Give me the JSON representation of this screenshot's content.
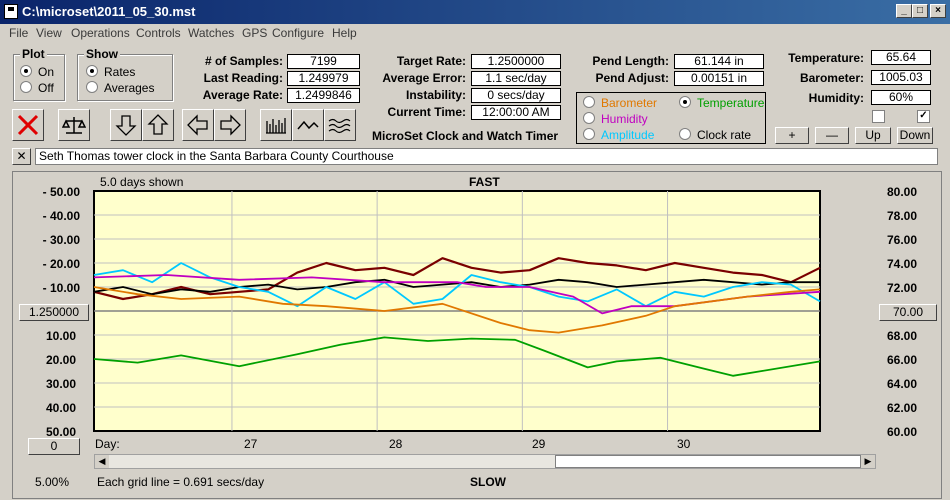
{
  "window": {
    "title": "C:\\microset\\2011_05_30.mst"
  },
  "menu": [
    "File",
    "View",
    "Operations",
    "Controls",
    "Watches",
    "GPS",
    "Configure",
    "Help"
  ],
  "plot_group": {
    "title": "Plot",
    "on": "On",
    "off": "Off",
    "selected": "On"
  },
  "show_group": {
    "title": "Show",
    "rates": "Rates",
    "averages": "Averages",
    "selected": "Rates"
  },
  "stats": {
    "samples_label": "# of Samples:",
    "samples": "7199",
    "last_label": "Last Reading:",
    "last": "1.249979",
    "avg_label": "Average Rate:",
    "avg": "1.2499846",
    "target_label": "Target Rate:",
    "target": "1.2500000",
    "avgerr_label": "Average Error:",
    "avgerr": "1.1 sec/day",
    "instab_label": "Instability:",
    "instab": "0 secs/day",
    "time_label": "Current Time:",
    "time": "12:00:00 AM",
    "app_name": "MicroSet Clock and Watch Timer",
    "pendlen_label": "Pend Length:",
    "pendlen": "61.144 in",
    "pendadj_label": "Pend Adjust:",
    "pendadj": "0.00151 in",
    "temp_label": "Temperature:",
    "temp": "65.64",
    "baro_label": "Barometer:",
    "baro": "1005.03",
    "hum_label": "Humidity:",
    "hum": "60%"
  },
  "sensors": {
    "barometer": "Barometer",
    "temperature": "Temperature",
    "humidity": "Humidity",
    "amplitude": "Amplitude",
    "clockrate": "Clock rate",
    "selected": "Temperature",
    "colors": {
      "barometer": "#e07800",
      "temperature": "#00a000",
      "humidity": "#c000c0",
      "amplitude": "#00c8ff",
      "clockrate": "#000000"
    }
  },
  "adjust_buttons": {
    "plus": "+",
    "minus": "—",
    "up": "Up",
    "down": "Down"
  },
  "description": "Seth Thomas tower clock in the Santa Barbara County Courthouse",
  "chart_labels": {
    "days_shown": "5.0 days shown",
    "fast": "FAST",
    "slow": "SLOW",
    "center_rate": "1.250000",
    "right_center": "70.00",
    "offset": "0",
    "zoom": "5.00%",
    "grid_note": "Each grid line = 0.691 secs/day"
  },
  "chart_data": {
    "type": "line",
    "left_ticks": [
      "- 50.00",
      "- 40.00",
      "- 30.00",
      "- 20.00",
      "- 10.00",
      "10.00",
      "20.00",
      "30.00",
      "40.00",
      "50.00"
    ],
    "right_ticks": [
      "80.00",
      "78.00",
      "76.00",
      "74.00",
      "72.00",
      "68.00",
      "66.00",
      "64.00",
      "62.00",
      "60.00"
    ],
    "x_label": "Day:",
    "x_ticks": [
      "27",
      "28",
      "29",
      "30"
    ],
    "x_range": [
      0,
      5
    ],
    "y_left_range": [
      -50,
      50
    ],
    "y_right_range": [
      60,
      80
    ],
    "series": [
      {
        "color": "#7a0000",
        "x": [
          0,
          0.2,
          0.4,
          0.6,
          0.8,
          1.0,
          1.2,
          1.4,
          1.6,
          1.8,
          2.0,
          2.2,
          2.4,
          2.6,
          2.8,
          3.0,
          3.2,
          3.4,
          3.6,
          3.8,
          4.0,
          4.2,
          4.4,
          4.6,
          4.8,
          5.0
        ],
        "y": [
          -8,
          -5,
          -7,
          -10,
          -7,
          -8,
          -9,
          -16,
          -20,
          -17,
          -18,
          -15,
          -22,
          -18,
          -16,
          -17,
          -22,
          -20,
          -19,
          -17,
          -20,
          -18,
          -16,
          -15,
          -12,
          -18
        ]
      },
      {
        "color": "#000000",
        "x": [
          0,
          0.2,
          0.4,
          0.6,
          0.8,
          1.0,
          1.2,
          1.4,
          1.6,
          1.8,
          2.0,
          2.2,
          2.4,
          2.6,
          2.8,
          3.0,
          3.2,
          3.4,
          3.6,
          3.8,
          4.0,
          4.2,
          4.4,
          4.6,
          4.8,
          5.0
        ],
        "y": [
          -8,
          -10,
          -7,
          -9,
          -8,
          -10,
          -11,
          -9,
          -10,
          -12,
          -13,
          -10,
          -11,
          -12,
          -10,
          -11,
          -13,
          -12,
          -10,
          -11,
          -12,
          -13,
          -12,
          -11,
          -12,
          -12
        ]
      },
      {
        "color": "#00c8ff",
        "x": [
          0,
          0.2,
          0.4,
          0.6,
          0.8,
          1.0,
          1.2,
          1.4,
          1.6,
          1.8,
          2.0,
          2.2,
          2.4,
          2.6,
          2.8,
          3.0,
          3.2,
          3.4,
          3.6,
          3.8,
          4.0,
          4.2,
          4.4,
          4.6,
          4.8,
          5.0
        ],
        "y": [
          -15,
          -17,
          -12,
          -20,
          -14,
          -10,
          -8,
          -2,
          -10,
          -5,
          -12,
          -3,
          -5,
          -15,
          -12,
          -10,
          -6,
          -4,
          -9,
          -2,
          -8,
          -6,
          -10,
          -12,
          -11,
          -4
        ]
      },
      {
        "color": "#c000c0",
        "x": [
          0,
          0.5,
          1.0,
          1.5,
          2.0,
          2.5,
          2.7,
          3.0,
          3.3,
          3.5,
          3.7,
          4.0,
          4.5,
          5.0
        ],
        "y": [
          -14,
          -15,
          -13,
          -14,
          -12,
          -12,
          -10,
          -10,
          -6,
          1,
          -2,
          -2,
          -6,
          -8
        ]
      },
      {
        "color": "#e07800",
        "x": [
          0,
          0.3,
          0.6,
          1.0,
          1.3,
          1.6,
          2.0,
          2.4,
          2.8,
          3.0,
          3.2,
          3.5,
          3.8,
          4.0,
          4.5,
          4.8,
          5.0
        ],
        "y": [
          -10,
          -7,
          -5,
          -6,
          -3,
          -2,
          0,
          -3,
          5,
          8,
          9,
          6,
          2,
          -2,
          -6,
          -8,
          -9
        ]
      },
      {
        "color": "#00a000",
        "x": [
          0,
          0.3,
          0.6,
          1.0,
          1.4,
          1.7,
          2.0,
          2.3,
          2.6,
          2.9,
          3.1,
          3.4,
          3.6,
          3.9,
          4.2,
          4.4,
          4.6,
          5.0
        ],
        "y": [
          66,
          65.7,
          66.3,
          65.4,
          66.4,
          67.2,
          67.8,
          67.5,
          67.7,
          67.6,
          66.7,
          65.3,
          65.8,
          66.1,
          65.2,
          64.6,
          65,
          65.8
        ]
      }
    ]
  }
}
